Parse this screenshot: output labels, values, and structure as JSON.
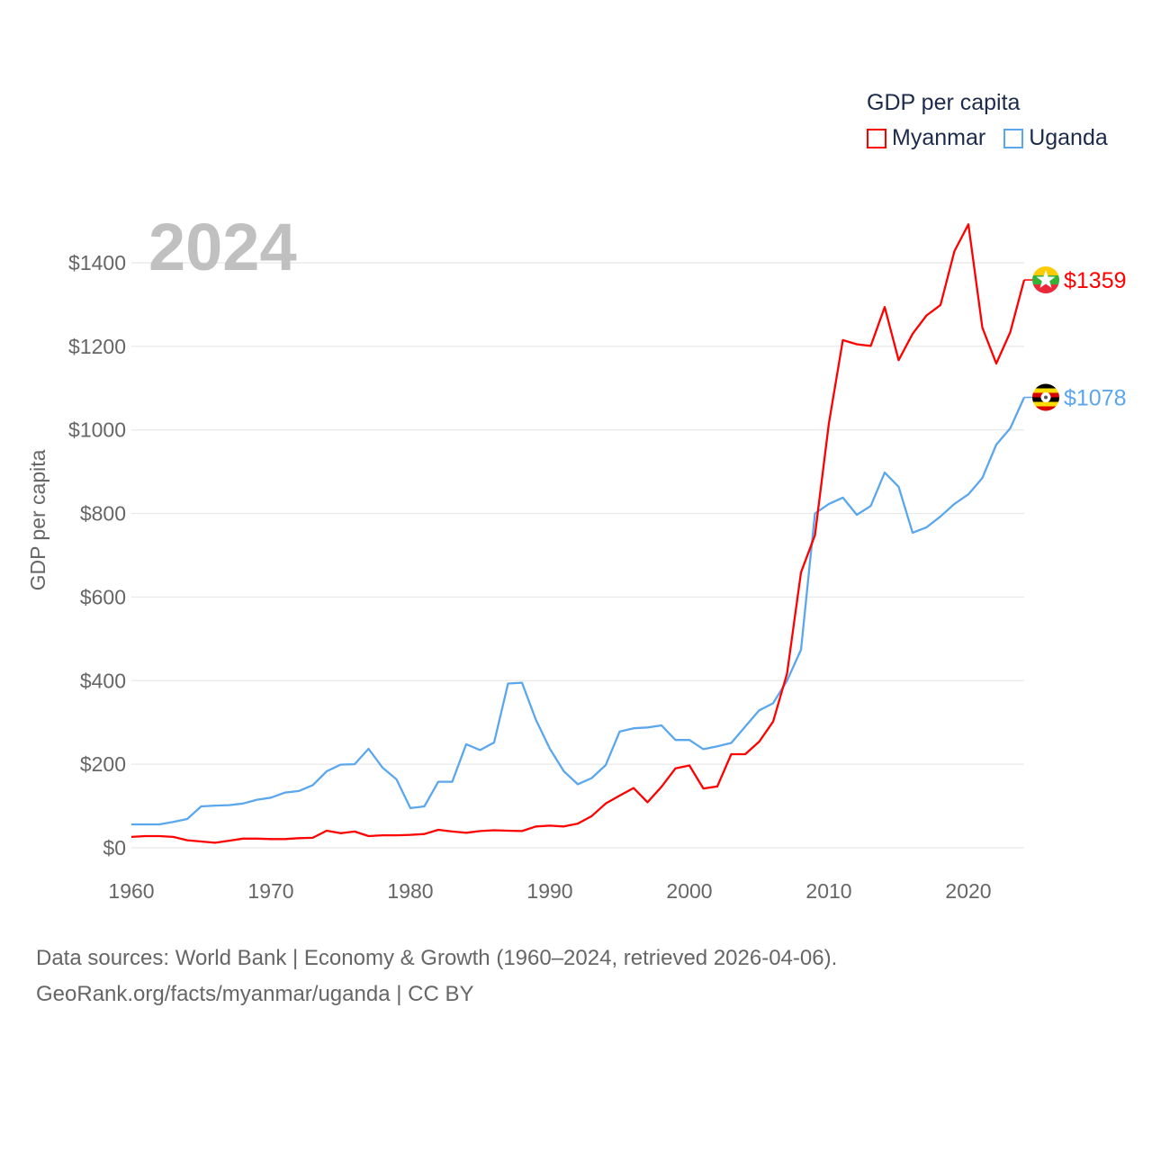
{
  "chart_data": {
    "type": "line",
    "title": "GDP per capita",
    "year_label": "2024",
    "xlabel": "",
    "ylabel": "GDP per capita",
    "xlim": [
      1960,
      2024
    ],
    "ylim": [
      0,
      1500
    ],
    "x_ticks": [
      1960,
      1970,
      1980,
      1990,
      2000,
      2010,
      2020
    ],
    "y_ticks": [
      0,
      200,
      400,
      600,
      800,
      1000,
      1200,
      1400
    ],
    "y_tick_labels": [
      "$0",
      "$200",
      "$400",
      "$600",
      "$800",
      "$1000",
      "$1200",
      "$1400"
    ],
    "grid": true,
    "legend_position": "top-right",
    "x": [
      1960,
      1961,
      1962,
      1963,
      1964,
      1965,
      1966,
      1967,
      1968,
      1969,
      1970,
      1971,
      1972,
      1973,
      1974,
      1975,
      1976,
      1977,
      1978,
      1979,
      1980,
      1981,
      1982,
      1983,
      1984,
      1985,
      1986,
      1987,
      1988,
      1989,
      1990,
      1991,
      1992,
      1993,
      1994,
      1995,
      1996,
      1997,
      1998,
      1999,
      2000,
      2001,
      2002,
      2003,
      2004,
      2005,
      2006,
      2007,
      2008,
      2009,
      2010,
      2011,
      2012,
      2013,
      2014,
      2015,
      2016,
      2017,
      2018,
      2019,
      2020,
      2021,
      2022,
      2023,
      2024
    ],
    "series": [
      {
        "name": "Myanmar",
        "color": "#ff0000",
        "end_label": "$1359",
        "flag": "myanmar-flag",
        "values": [
          26,
          28,
          28,
          26,
          18,
          15,
          12,
          17,
          22,
          22,
          21,
          21,
          23,
          24,
          41,
          35,
          39,
          28,
          30,
          30,
          31,
          33,
          43,
          39,
          36,
          40,
          42,
          41,
          40,
          51,
          53,
          51,
          58,
          76,
          106,
          125,
          143,
          109,
          146,
          190,
          197,
          142,
          147,
          224,
          224,
          254,
          302,
          417,
          659,
          748,
          1016,
          1215,
          1205,
          1201,
          1294,
          1167,
          1230,
          1274,
          1299,
          1428,
          1492,
          1245,
          1159,
          1234,
          1359
        ]
      },
      {
        "name": "Uganda",
        "color": "#5aa7ee",
        "end_label": "$1078",
        "flag": "uganda-flag",
        "values": [
          56,
          56,
          56,
          62,
          69,
          99,
          101,
          102,
          106,
          115,
          120,
          132,
          136,
          150,
          183,
          199,
          200,
          237,
          192,
          164,
          95,
          99,
          158,
          158,
          248,
          234,
          252,
          393,
          395,
          306,
          237,
          183,
          152,
          167,
          198,
          278,
          286,
          288,
          293,
          258,
          258,
          236,
          243,
          251,
          290,
          329,
          346,
          400,
          474,
          800,
          823,
          838,
          797,
          818,
          898,
          864,
          754,
          767,
          793,
          823,
          846,
          885,
          965,
          1004,
          1078
        ]
      }
    ]
  },
  "footer": {
    "line1": "Data sources: World Bank | Economy & Growth (1960–2024, retrieved 2026-04-06).",
    "line2": "GeoRank.org/facts/myanmar/uganda | CC BY"
  }
}
